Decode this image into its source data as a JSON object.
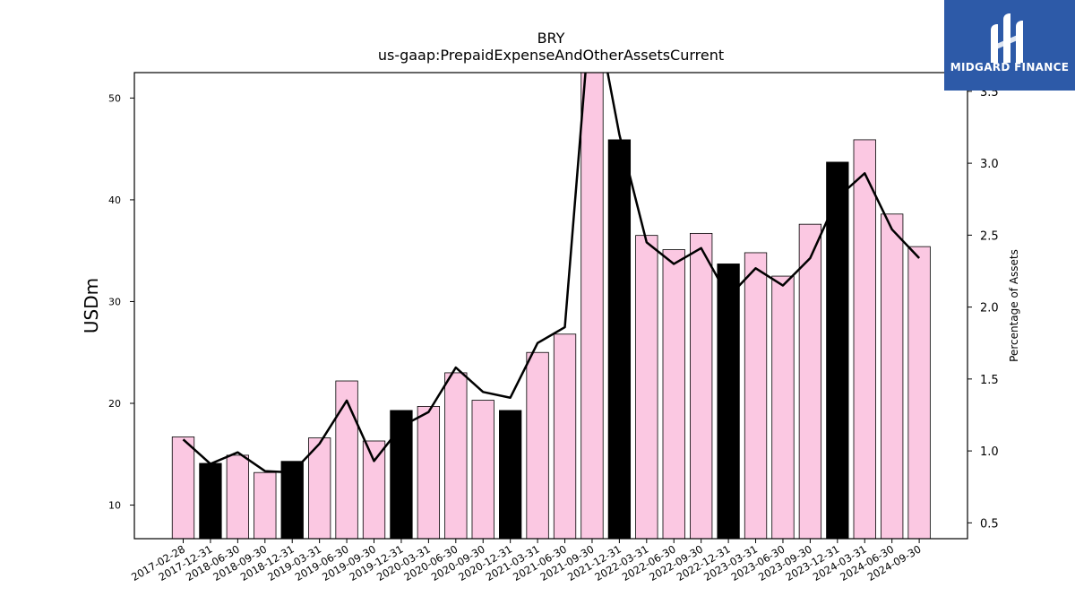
{
  "title": "BRY",
  "subtitle": "us-gaap:PrepaidExpenseAndOtherAssetsCurrent",
  "logo": {
    "text": "MIDGARD FINANCE"
  },
  "colors": {
    "regular_bar": "#fbc8e2",
    "highlight_bar": "#000000",
    "line": "#000000",
    "logo_bg": "#2d5aa8"
  },
  "chart_data": {
    "type": "bar",
    "ylabel": "USDm",
    "y2label": "Percentage of Assets",
    "ylim": [
      6.7,
      52.5
    ],
    "y2lim": [
      0.39,
      3.63
    ],
    "yticks": [
      10,
      20,
      30,
      40,
      50
    ],
    "y2ticks": [
      0.5,
      1.0,
      1.5,
      2.0,
      2.5,
      3.0,
      3.5
    ],
    "categories": [
      "2017-02-28",
      "2017-12-31",
      "2018-06-30",
      "2018-09-30",
      "2018-12-31",
      "2019-03-31",
      "2019-06-30",
      "2019-09-30",
      "2019-12-31",
      "2020-03-31",
      "2020-06-30",
      "2020-09-30",
      "2020-12-31",
      "2021-03-31",
      "2021-06-30",
      "2021-09-30",
      "2021-12-31",
      "2022-03-31",
      "2022-06-30",
      "2022-09-30",
      "2022-12-31",
      "2023-03-31",
      "2023-06-30",
      "2023-09-30",
      "2023-12-31",
      "2024-03-31",
      "2024-06-30",
      "2024-09-30"
    ],
    "series": [
      {
        "type": "bar",
        "axis": "left",
        "values": [
          16.7,
          14.1,
          14.9,
          13.2,
          14.3,
          16.6,
          22.2,
          16.3,
          19.3,
          19.7,
          23.0,
          20.3,
          19.3,
          25.0,
          26.8,
          56.0,
          45.9,
          36.5,
          35.1,
          36.7,
          33.7,
          34.8,
          32.5,
          37.6,
          43.7,
          45.9,
          38.6,
          35.4
        ],
        "highlight": [
          false,
          true,
          false,
          false,
          true,
          false,
          false,
          false,
          true,
          false,
          false,
          false,
          true,
          false,
          false,
          false,
          true,
          false,
          false,
          false,
          true,
          false,
          false,
          false,
          true,
          false,
          false,
          false
        ]
      },
      {
        "type": "line",
        "axis": "right",
        "values": [
          1.08,
          0.91,
          0.99,
          0.86,
          0.85,
          1.05,
          1.35,
          0.93,
          1.17,
          1.27,
          1.58,
          1.41,
          1.37,
          1.75,
          1.86,
          4.2,
          3.2,
          2.45,
          2.3,
          2.41,
          2.07,
          2.27,
          2.15,
          2.34,
          2.76,
          2.93,
          2.54,
          2.34
        ]
      }
    ]
  }
}
